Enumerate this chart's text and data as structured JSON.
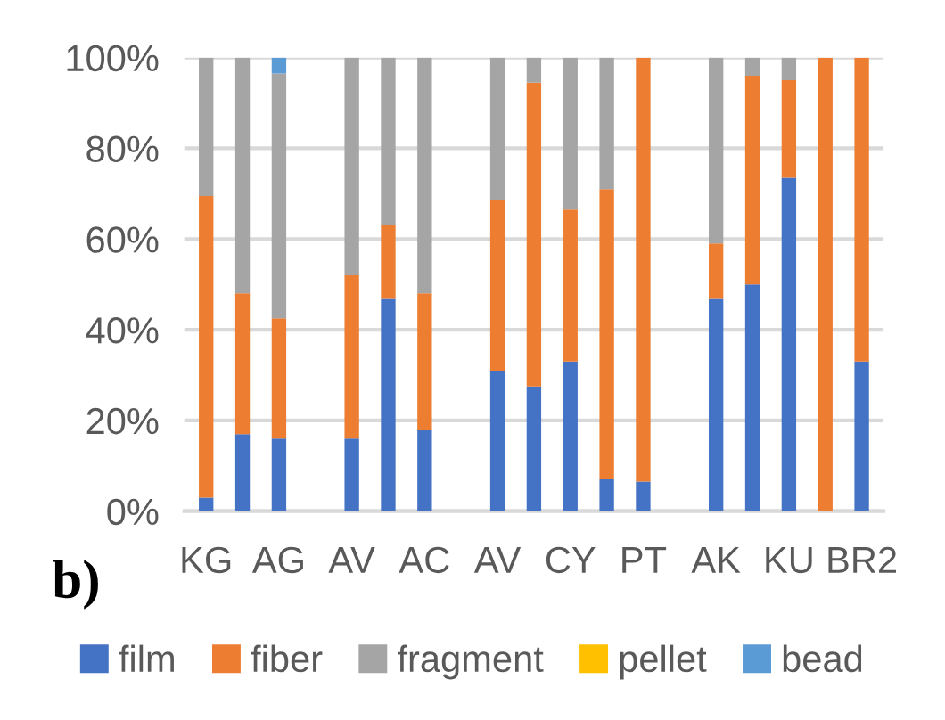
{
  "chart_data": {
    "type": "bar",
    "stacked": true,
    "categories": [
      "KG",
      null,
      "AG",
      null,
      "AV",
      null,
      "AC",
      null,
      "AV",
      null,
      "CY",
      null,
      "PT",
      null,
      "AK",
      null,
      "KU",
      null,
      "BR2"
    ],
    "series": [
      {
        "name": "film",
        "color": "#4472c4",
        "values": [
          3,
          17,
          16,
          null,
          16,
          47,
          18,
          null,
          31,
          27.5,
          33,
          7,
          6.5,
          null,
          47,
          50,
          73.5,
          0,
          33
        ]
      },
      {
        "name": "fiber",
        "color": "#ed7d31",
        "values": [
          66.5,
          31,
          26.5,
          null,
          36,
          16,
          30,
          null,
          37.5,
          67,
          33.5,
          64,
          93.5,
          null,
          12,
          46,
          21.5,
          100,
          67
        ]
      },
      {
        "name": "fragment",
        "color": "#a5a5a5",
        "values": [
          30.5,
          52,
          54,
          null,
          48,
          37,
          52,
          null,
          31.5,
          5.5,
          33.5,
          29,
          0,
          null,
          41,
          4,
          5,
          0,
          0
        ]
      },
      {
        "name": "pellet",
        "color": "#ffc000",
        "values": [
          0,
          0,
          0,
          null,
          0,
          0,
          0,
          null,
          0,
          0,
          0,
          0,
          0,
          null,
          0,
          0,
          0,
          0,
          0
        ]
      },
      {
        "name": "bead",
        "color": "#5b9bd5",
        "values": [
          0,
          0,
          3.5,
          null,
          0,
          0,
          0,
          null,
          0,
          0,
          0,
          0,
          0,
          null,
          0,
          0,
          0,
          0,
          0
        ]
      }
    ],
    "ylim": [
      0,
      100
    ],
    "yticks": [
      {
        "value": 0,
        "label": "0%"
      },
      {
        "value": 20,
        "label": "20%"
      },
      {
        "value": 40,
        "label": "40%"
      },
      {
        "value": 60,
        "label": "60%"
      },
      {
        "value": 80,
        "label": "80%"
      },
      {
        "value": 100,
        "label": "100%"
      }
    ],
    "grid": "y",
    "legend": "bottom",
    "annotations": [
      "b)"
    ]
  }
}
